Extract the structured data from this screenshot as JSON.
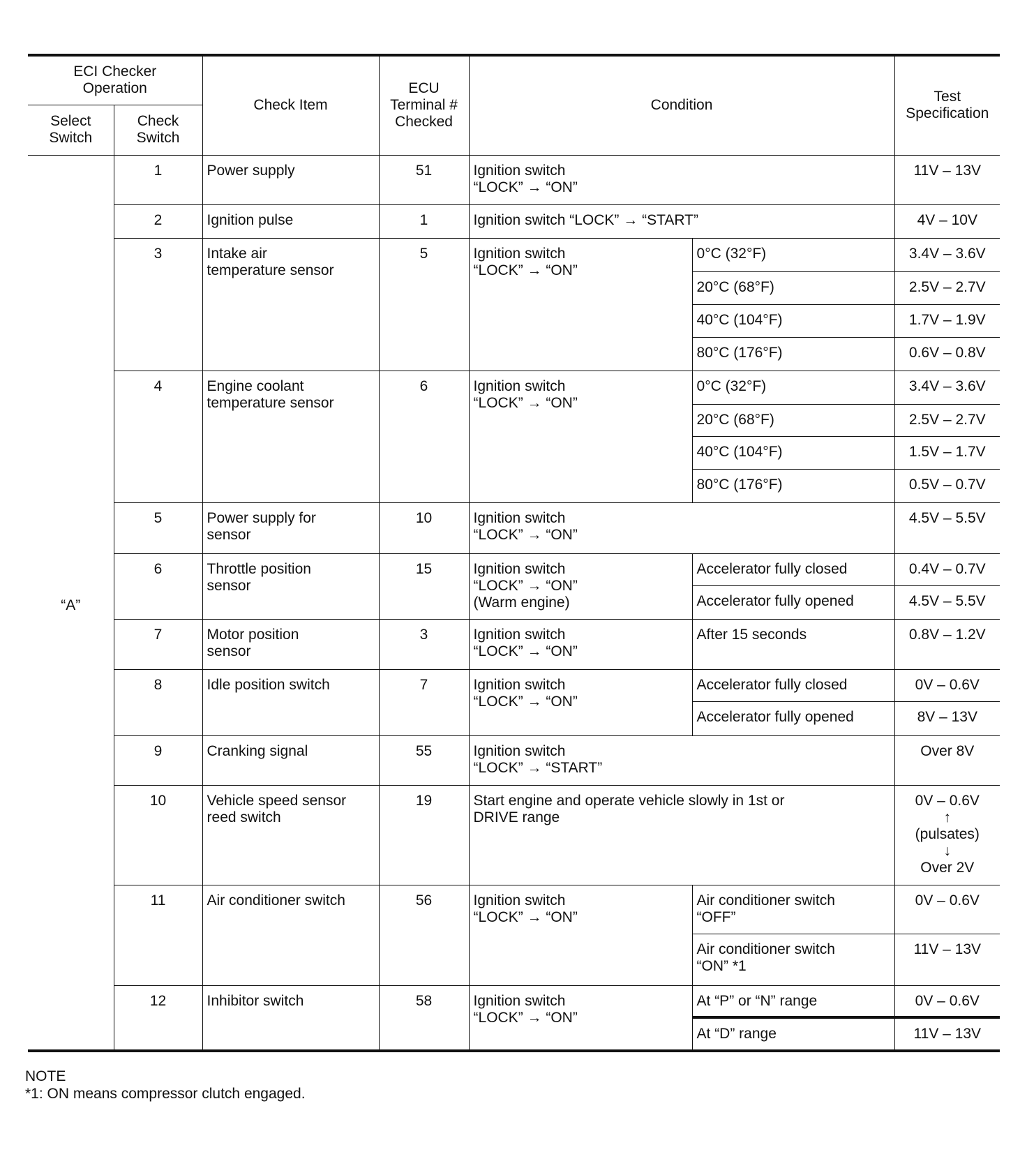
{
  "header": {
    "eci_checker_operation": "ECI Checker\nOperation",
    "select_switch": "Select\nSwitch",
    "check_switch": "Check\nSwitch",
    "check_item": "Check  Item",
    "ecu_terminal": "ECU\nTerminal #\nChecked",
    "condition": "Condition",
    "test_spec": "Test\nSpecification"
  },
  "select_switch_value": "“A”",
  "rows": [
    {
      "check": "1",
      "item": "Power supply",
      "terminal": "51",
      "condition": "Ignition switch\n“LOCK” → “ON”",
      "subs": [
        {
          "cond": "",
          "spec": "11V  –  13V"
        }
      ]
    },
    {
      "check": "2",
      "item": "Ignition pulse",
      "terminal": "1",
      "condition": "Ignition switch “LOCK” → “START”",
      "subs": [
        {
          "cond": "",
          "spec": "4V  –  10V"
        }
      ]
    },
    {
      "check": "3",
      "item": "Intake air\ntemperature sensor",
      "terminal": "5",
      "condition": "Ignition switch\n“LOCK” → “ON”",
      "subs": [
        {
          "cond": "0°C (32°F)",
          "spec": "3.4V  –  3.6V"
        },
        {
          "cond": "20°C (68°F)",
          "spec": "2.5V  –  2.7V"
        },
        {
          "cond": "40°C (104°F)",
          "spec": "1.7V  –  1.9V"
        },
        {
          "cond": "80°C (176°F)",
          "spec": "0.6V  –  0.8V"
        }
      ]
    },
    {
      "check": "4",
      "item": "Engine coolant\ntemperature sensor",
      "terminal": "6",
      "condition": "Ignition switch\n“LOCK” → “ON”",
      "subs": [
        {
          "cond": "0°C (32°F)",
          "spec": "3.4V  –  3.6V"
        },
        {
          "cond": "20°C (68°F)",
          "spec": "2.5V  –  2.7V"
        },
        {
          "cond": "40°C (104°F)",
          "spec": "1.5V  –  1.7V"
        },
        {
          "cond": "80°C (176°F)",
          "spec": "0.5V  –  0.7V"
        }
      ]
    },
    {
      "check": "5",
      "item": "Power supply for\nsensor",
      "terminal": "10",
      "condition": "Ignition switch\n“LOCK” → “ON”",
      "subs": [
        {
          "cond": "",
          "spec": "4.5V  –  5.5V"
        }
      ]
    },
    {
      "check": "6",
      "item": "Throttle position\nsensor",
      "terminal": "15",
      "condition": "Ignition switch\n“LOCK” → “ON”\n(Warm engine)",
      "subs": [
        {
          "cond": "Accelerator fully closed",
          "spec": "0.4V  –  0.7V"
        },
        {
          "cond": "Accelerator fully opened",
          "spec": "4.5V  –  5.5V"
        }
      ]
    },
    {
      "check": "7",
      "item": "Motor position\nsensor",
      "terminal": "3",
      "condition": "Ignition switch\n“LOCK” → “ON”",
      "subs": [
        {
          "cond": "After 15 seconds",
          "spec": "0.8V  –  1.2V"
        }
      ]
    },
    {
      "check": "8",
      "item": "Idle position switch",
      "terminal": "7",
      "condition": "Ignition switch\n“LOCK” → “ON”",
      "subs": [
        {
          "cond": "Accelerator fully closed",
          "spec": "0V  –  0.6V"
        },
        {
          "cond": "Accelerator fully opened",
          "spec": "8V  –  13V"
        }
      ]
    },
    {
      "check": "9",
      "item": "Cranking signal",
      "terminal": "55",
      "condition": "Ignition switch\n“LOCK” → “START”",
      "subs": [
        {
          "cond": "",
          "spec": "Over  8V"
        }
      ]
    },
    {
      "check": "10",
      "item": "Vehicle speed sensor\nreed switch",
      "terminal": "19",
      "condition": "Start engine and operate vehicle slowly in 1st or\nDRIVE range",
      "subs": [
        {
          "cond": "",
          "spec": "0V  –  0.6V\n↑\n(pulsates)\n↓\nOver  2V"
        }
      ]
    },
    {
      "check": "11",
      "item": "Air conditioner switch",
      "terminal": "56",
      "condition": "Ignition switch\n“LOCK” → “ON”",
      "subs": [
        {
          "cond": "Air conditioner switch\n“OFF”",
          "spec": "0V  –  0.6V"
        },
        {
          "cond": "Air conditioner switch\n“ON” *1",
          "spec": "11V  –  13V"
        }
      ]
    },
    {
      "check": "12",
      "item": "Inhibitor switch",
      "terminal": "58",
      "condition": "Ignition switch\n“LOCK” → “ON”",
      "subs": [
        {
          "cond": "At “P” or “N” range",
          "spec": "0V  –  0.6V"
        },
        {
          "cond": "At “D” range",
          "spec": "11V  –  13V"
        }
      ]
    }
  ],
  "note": {
    "title": "NOTE",
    "text": "*1:  ON means compressor clutch engaged."
  }
}
